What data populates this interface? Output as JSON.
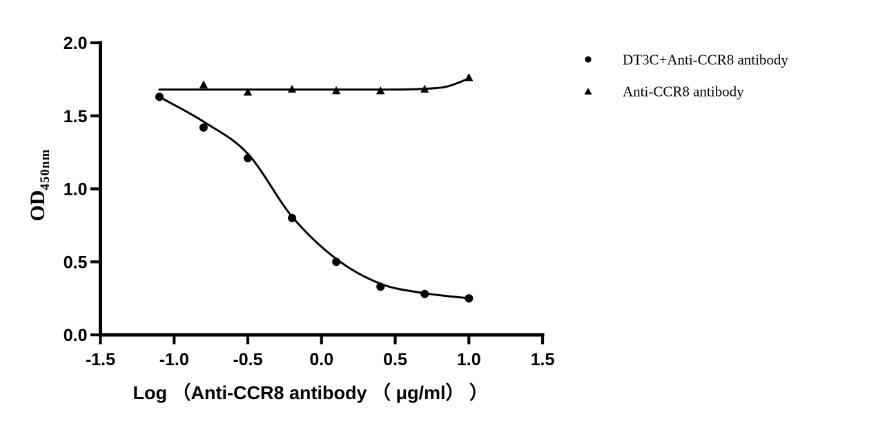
{
  "ink_color": "#000000",
  "background_color": "#ffffff",
  "chart_data": {
    "type": "scatter",
    "title": "",
    "xlabel": "Log （Anti-CCR8 antibody （ μg/ml） ）",
    "ylabel_main": "OD",
    "ylabel_sub": "450nm",
    "xlim": [
      -1.5,
      1.5
    ],
    "ylim": [
      0.0,
      2.0
    ],
    "grid": false,
    "legend_position": "right",
    "xtick_values": [
      -1.5,
      -1.0,
      -0.5,
      0.0,
      0.5,
      1.0,
      1.5
    ],
    "xtick_labels": [
      "-1.5",
      "-1.0",
      "-0.5",
      "0.0",
      "0.5",
      "1.0",
      "1.5"
    ],
    "ytick_values": [
      0.0,
      0.5,
      1.0,
      1.5,
      2.0
    ],
    "ytick_labels": [
      "0.0",
      "0.5",
      "1.0",
      "1.5",
      "2.0"
    ],
    "series": [
      {
        "name": "DT3C+Anti-CCR8 antibody",
        "marker": "circle",
        "x": [
          -1.1,
          -0.8,
          -0.5,
          -0.2,
          0.1,
          0.4,
          0.7,
          1.0
        ],
        "y": [
          1.63,
          1.42,
          1.21,
          0.8,
          0.5,
          0.33,
          0.28,
          0.25
        ],
        "fit_curve_x": [
          -1.1,
          -0.8,
          -0.5,
          -0.2,
          0.1,
          0.4,
          0.7,
          1.0
        ],
        "fit_curve_y": [
          1.63,
          1.46,
          1.24,
          0.81,
          0.52,
          0.35,
          0.285,
          0.25
        ]
      },
      {
        "name": "Anti-CCR8 antibody",
        "marker": "triangle",
        "x": [
          -0.8,
          -0.5,
          -0.2,
          0.1,
          0.4,
          0.7,
          1.0
        ],
        "y": [
          1.71,
          1.66,
          1.68,
          1.67,
          1.67,
          1.68,
          1.76
        ],
        "fit_curve_x": [
          -1.1,
          -0.7,
          -0.3,
          0.1,
          0.45,
          0.7,
          0.85,
          1.0
        ],
        "fit_curve_y": [
          1.68,
          1.68,
          1.68,
          1.68,
          1.68,
          1.685,
          1.7,
          1.755
        ]
      }
    ],
    "legend_entries": [
      {
        "label": "DT3C+Anti-CCR8 antibody",
        "marker": "circle"
      },
      {
        "label": "Anti-CCR8 antibody",
        "marker": "triangle"
      }
    ]
  }
}
